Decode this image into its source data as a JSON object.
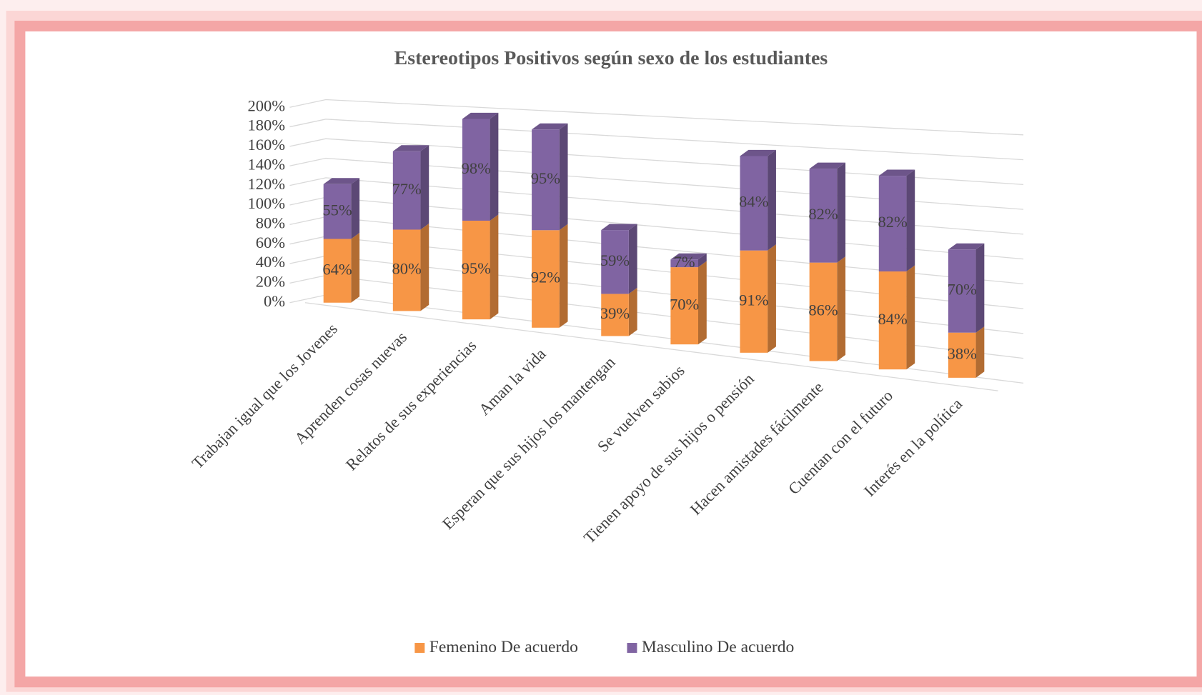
{
  "chart_data": {
    "type": "bar3d_stacked",
    "title": "Estereotipos Positivos según sexo de los estudiantes",
    "categories": [
      "Trabajan igual que los Jovenes",
      "Aprenden cosas nuevas",
      "Relatos de sus experiencias",
      "Aman la vida",
      "Esperan que sus hijos los mantengan",
      "Se vuelven sabios",
      "Tienen apoyo de sus hijos o pensión",
      "Hacen amistades fácilmente",
      "Cuentan con el futuro",
      "Interés en la política"
    ],
    "series": [
      {
        "name": "Femenino De acuerdo",
        "color": "#f79646",
        "values": [
          64,
          80,
          95,
          92,
          39,
          70,
          91,
          86,
          84,
          38
        ],
        "value_labels": [
          "64%",
          "80%",
          "95%",
          "92%",
          "39%",
          "70%",
          "91%",
          "86%",
          "84%",
          "38%"
        ]
      },
      {
        "name": "Masculino De acuerdo",
        "color": "#8064a2",
        "values": [
          55,
          77,
          98,
          95,
          59,
          7,
          84,
          82,
          82,
          70
        ],
        "value_labels": [
          "55%",
          "77%",
          "98%",
          "95%",
          "59%",
          "7%",
          "84%",
          "82%",
          "82%",
          "70%"
        ]
      }
    ],
    "ylim": [
      0,
      200
    ],
    "yticks": [
      {
        "value": 0,
        "label": "0%"
      },
      {
        "value": 20,
        "label": "20%"
      },
      {
        "value": 40,
        "label": "40%"
      },
      {
        "value": 60,
        "label": "60%"
      },
      {
        "value": 80,
        "label": "80%"
      },
      {
        "value": 100,
        "label": "100%"
      },
      {
        "value": 120,
        "label": "120%"
      },
      {
        "value": 140,
        "label": "140%"
      },
      {
        "value": 160,
        "label": "160%"
      },
      {
        "value": 180,
        "label": "180%"
      },
      {
        "value": 200,
        "label": "200%"
      }
    ],
    "grid": true,
    "legend": "bottom"
  }
}
